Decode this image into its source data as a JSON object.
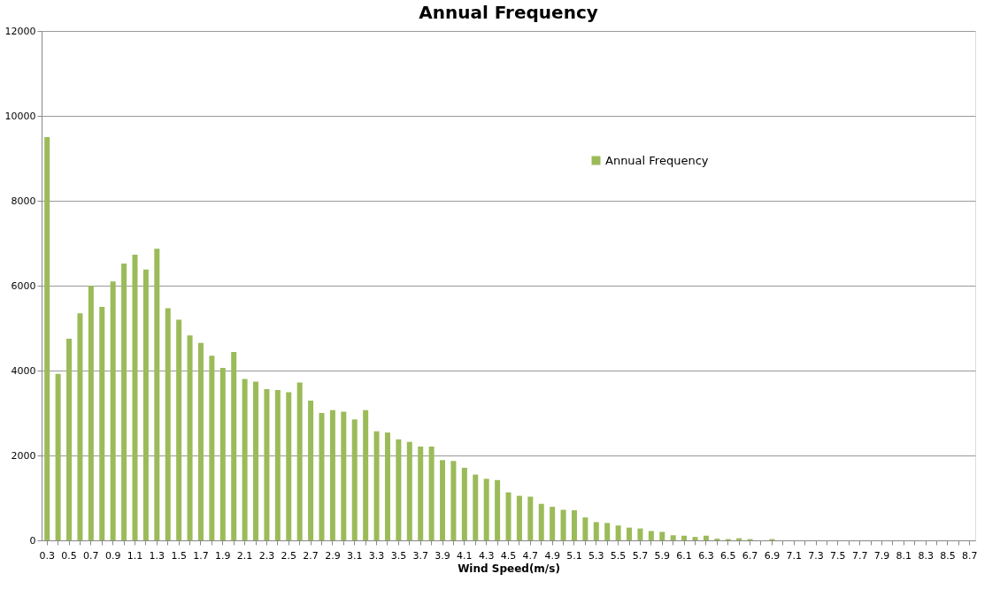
{
  "chart_data": {
    "type": "bar",
    "title": "Annual Frequency",
    "xlabel": "Wind Speed(m/s)",
    "categories": [
      "0.3",
      null,
      "0.5",
      null,
      "0.7",
      null,
      "0.9",
      null,
      "1.1",
      null,
      "1.3",
      null,
      "1.5",
      null,
      "1.7",
      null,
      "1.9",
      null,
      "2.1",
      null,
      "2.3",
      null,
      "2.5",
      null,
      "2.7",
      null,
      "2.9",
      null,
      "3.1",
      null,
      "3.3",
      null,
      "3.5",
      null,
      "3.7",
      null,
      "3.9",
      null,
      "4.1",
      null,
      "4.3",
      null,
      "4.5",
      null,
      "4.7",
      null,
      "4.9",
      null,
      "5.1",
      null,
      "5.3",
      null,
      "5.5",
      null,
      "5.7",
      null,
      "5.9",
      null,
      "6.1",
      null,
      "6.3",
      null,
      "6.5",
      null,
      "6.7",
      null,
      "6.9",
      null,
      "7.1",
      null,
      "7.3",
      null,
      "7.5",
      null,
      "7.7",
      null,
      "7.9",
      null,
      "8.1",
      null,
      "8.3",
      null,
      "8.5",
      null,
      "8.7"
    ],
    "series": [
      {
        "name": "Annual Frequency",
        "color": "#9bbb59",
        "values": [
          9500,
          3920,
          4750,
          5350,
          6000,
          5500,
          6100,
          6520,
          6730,
          6380,
          6870,
          5470,
          5200,
          4830,
          4650,
          4350,
          4060,
          4440,
          3800,
          3740,
          3560,
          3540,
          3490,
          3720,
          3290,
          3000,
          3070,
          3030,
          2850,
          3070,
          2570,
          2540,
          2380,
          2320,
          2210,
          2210,
          1890,
          1870,
          1710,
          1550,
          1450,
          1420,
          1130,
          1050,
          1030,
          860,
          790,
          720,
          710,
          540,
          430,
          410,
          350,
          300,
          280,
          220,
          200,
          120,
          110,
          80,
          110,
          40,
          30,
          50,
          30,
          0,
          30,
          0,
          0,
          0,
          0,
          0,
          0,
          0,
          0,
          0,
          0,
          0,
          0,
          0,
          0,
          0,
          0,
          0,
          0
        ]
      }
    ],
    "ylim": [
      0,
      12000
    ],
    "yticks": [
      0,
      2000,
      4000,
      6000,
      8000,
      10000,
      12000
    ],
    "grid": "y",
    "legend": "top right"
  }
}
